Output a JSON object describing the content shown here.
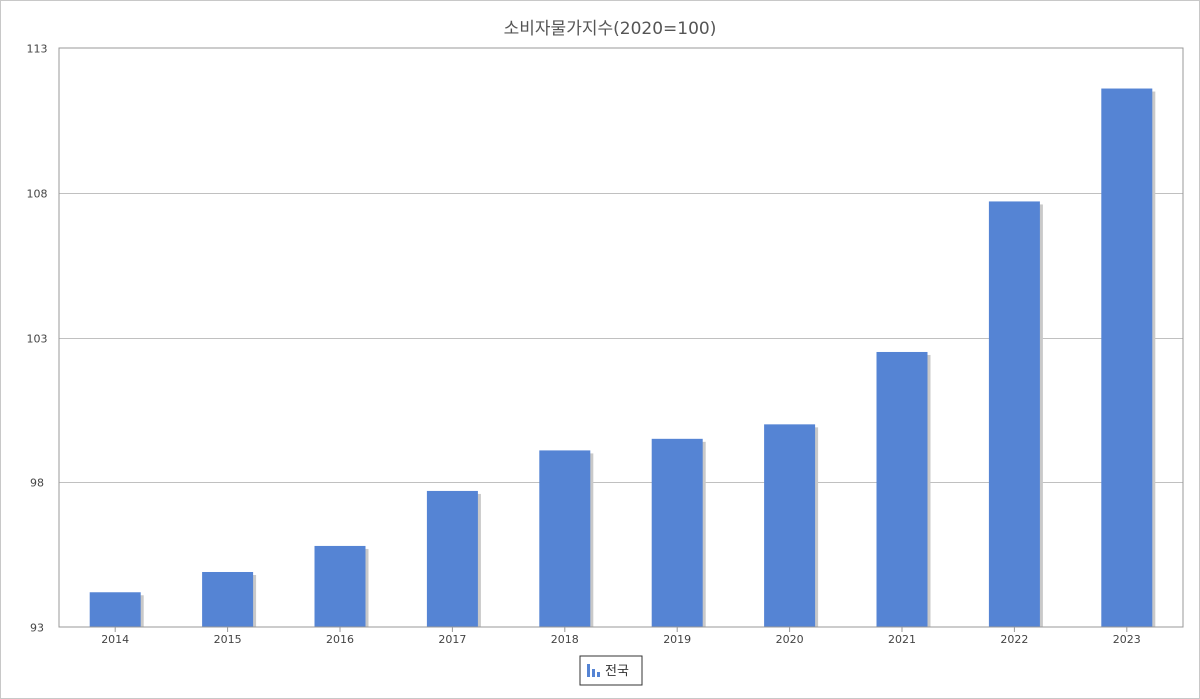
{
  "chart_data": {
    "type": "bar",
    "title": "소비자물가지수(2020=100)",
    "xlabel": "",
    "ylabel": "",
    "categories": [
      "2014",
      "2015",
      "2016",
      "2017",
      "2018",
      "2019",
      "2020",
      "2021",
      "2022",
      "2023"
    ],
    "series": [
      {
        "name": "전국",
        "color": "#5584d4",
        "values": [
          94.2,
          94.9,
          95.8,
          97.7,
          99.1,
          99.5,
          100.0,
          102.5,
          107.7,
          111.6
        ]
      }
    ],
    "ylim": [
      93,
      113
    ],
    "yticks": [
      "93",
      "98",
      "103",
      "108",
      "113"
    ],
    "grid": true,
    "legend_position": "bottom-center",
    "legend_icon": "bar-chart-icon"
  }
}
